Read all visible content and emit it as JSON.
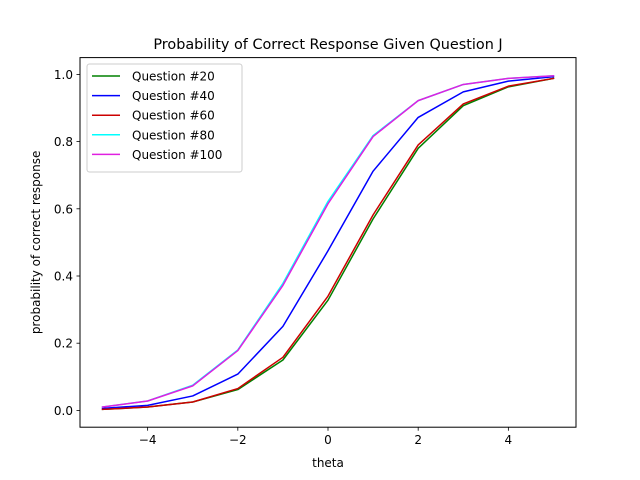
{
  "chart_data": {
    "type": "line",
    "title": "Probability of Correct Response Given Question J",
    "xlabel": "theta",
    "ylabel": "probability of correct response",
    "xlim": [
      -5.5,
      5.5
    ],
    "ylim": [
      -0.05,
      1.05
    ],
    "xticks": [
      -4,
      -2,
      0,
      2,
      4
    ],
    "xtick_labels": [
      "−4",
      "−2",
      "0",
      "2",
      "4"
    ],
    "yticks": [
      0.0,
      0.2,
      0.4,
      0.6,
      0.8,
      1.0
    ],
    "ytick_labels": [
      "0.0",
      "0.2",
      "0.4",
      "0.6",
      "0.8",
      "1.0"
    ],
    "grid": false,
    "legend_position": "upper-left",
    "x": [
      -5,
      -4,
      -3,
      -2,
      -1,
      0,
      1,
      2,
      3,
      4,
      5
    ],
    "series": [
      {
        "name": "Question #20",
        "color": "#008000",
        "values": [
          0.003,
          0.01,
          0.025,
          0.062,
          0.15,
          0.328,
          0.57,
          0.78,
          0.907,
          0.963,
          0.988
        ]
      },
      {
        "name": "Question #40",
        "color": "#0000ff",
        "values": [
          0.006,
          0.015,
          0.043,
          0.108,
          0.25,
          0.475,
          0.712,
          0.872,
          0.948,
          0.98,
          0.993
        ]
      },
      {
        "name": "Question #60",
        "color": "#cc0000",
        "values": [
          0.003,
          0.01,
          0.025,
          0.065,
          0.158,
          0.34,
          0.582,
          0.79,
          0.912,
          0.965,
          0.988
        ]
      },
      {
        "name": "Question #80",
        "color": "#00ffff",
        "values": [
          0.01,
          0.028,
          0.075,
          0.18,
          0.378,
          0.622,
          0.818,
          0.922,
          0.97,
          0.988,
          0.996
        ]
      },
      {
        "name": "Question #100",
        "color": "#e020e0",
        "values": [
          0.01,
          0.028,
          0.073,
          0.178,
          0.372,
          0.615,
          0.815,
          0.922,
          0.97,
          0.988,
          0.996
        ]
      }
    ]
  }
}
